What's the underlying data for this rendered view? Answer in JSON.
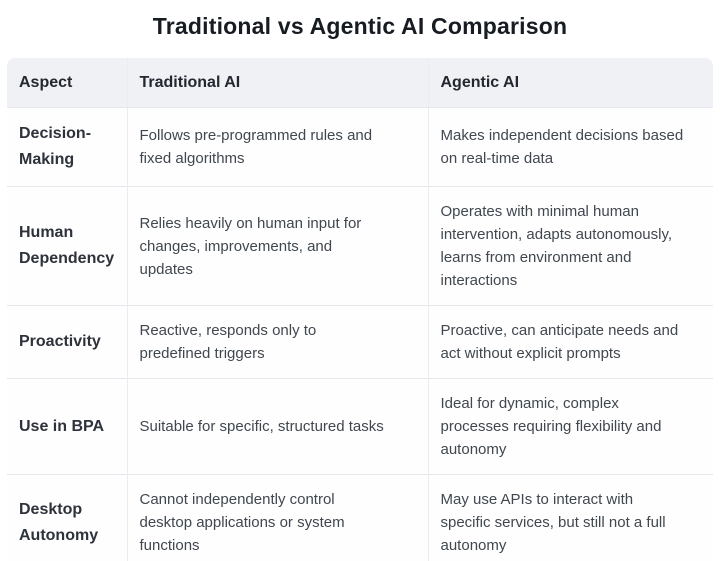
{
  "title": "Traditional vs Agentic AI Comparison",
  "table": {
    "headers": [
      "Aspect",
      "Traditional AI",
      "Agentic AI"
    ],
    "rows": [
      {
        "aspect": "Decision-\nMaking",
        "traditional": "Follows pre-programmed rules and\nfixed algorithms",
        "agentic": "Makes independent decisions based\non real-time data"
      },
      {
        "aspect": "Human\nDependency",
        "traditional": "Relies heavily on human input for\nchanges, improvements, and\nupdates",
        "agentic": "Operates with minimal human\nintervention, adapts autonomously,\nlearns from environment and\ninteractions"
      },
      {
        "aspect": "Proactivity",
        "traditional": "Reactive, responds only to\npredefined triggers",
        "agentic": "Proactive, can anticipate needs and\nact without explicit prompts"
      },
      {
        "aspect": "Use in BPA",
        "traditional": "Suitable for specific, structured tasks",
        "agentic": "Ideal for dynamic, complex\nprocesses requiring flexibility and\nautonomy"
      },
      {
        "aspect": "Desktop\nAutonomy",
        "traditional": "Cannot independently control\ndesktop applications or system\nfunctions",
        "agentic": "May use APIs to interact with\nspecific services, but still not a full\nautonomy"
      }
    ]
  },
  "colors": {
    "header_background": "#eff1f4",
    "row_border": "#e4e7ec",
    "title_text": "#171b22",
    "aspect_text": "#2d323b",
    "cell_text": "#40474f"
  }
}
